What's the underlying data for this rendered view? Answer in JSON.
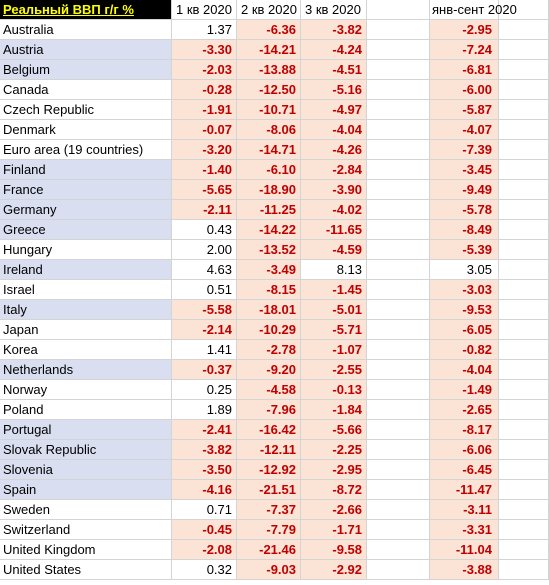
{
  "header": {
    "title": "Реальный ВВП г/г  %",
    "q1": "1 кв 2020",
    "q2": "2 кв 2020",
    "q3": "3 кв 2020",
    "ytd": "янв-сент 2020"
  },
  "colors": {
    "title_bg": "#000000",
    "title_text": "#ffff00",
    "highlight_row": "#d9def0",
    "negative_bg": "#fbe3d6",
    "negative_text": "#c00000"
  },
  "rows": [
    {
      "country": "Australia",
      "highlight": false,
      "q1": "1.37",
      "q2": "-6.36",
      "q3": "-3.82",
      "ytd": "-2.95"
    },
    {
      "country": "Austria",
      "highlight": true,
      "q1": "-3.30",
      "q2": "-14.21",
      "q3": "-4.24",
      "ytd": "-7.24"
    },
    {
      "country": "Belgium",
      "highlight": true,
      "q1": "-2.03",
      "q2": "-13.88",
      "q3": "-4.51",
      "ytd": "-6.81"
    },
    {
      "country": "Canada",
      "highlight": false,
      "q1": "-0.28",
      "q2": "-12.50",
      "q3": "-5.16",
      "ytd": "-6.00"
    },
    {
      "country": "Czech Republic",
      "highlight": false,
      "q1": "-1.91",
      "q2": "-10.71",
      "q3": "-4.97",
      "ytd": "-5.87"
    },
    {
      "country": "Denmark",
      "highlight": false,
      "q1": "-0.07",
      "q2": "-8.06",
      "q3": "-4.04",
      "ytd": "-4.07"
    },
    {
      "country": "Euro area (19 countries)",
      "highlight": false,
      "q1": "-3.20",
      "q2": "-14.71",
      "q3": "-4.26",
      "ytd": "-7.39"
    },
    {
      "country": "Finland",
      "highlight": true,
      "q1": "-1.40",
      "q2": "-6.10",
      "q3": "-2.84",
      "ytd": "-3.45"
    },
    {
      "country": "France",
      "highlight": true,
      "q1": "-5.65",
      "q2": "-18.90",
      "q3": "-3.90",
      "ytd": "-9.49"
    },
    {
      "country": "Germany",
      "highlight": true,
      "q1": "-2.11",
      "q2": "-11.25",
      "q3": "-4.02",
      "ytd": "-5.78"
    },
    {
      "country": "Greece",
      "highlight": true,
      "q1": "0.43",
      "q2": "-14.22",
      "q3": "-11.65",
      "ytd": "-8.49"
    },
    {
      "country": "Hungary",
      "highlight": false,
      "q1": "2.00",
      "q2": "-13.52",
      "q3": "-4.59",
      "ytd": "-5.39"
    },
    {
      "country": "Ireland",
      "highlight": true,
      "q1": "4.63",
      "q2": "-3.49",
      "q3": "8.13",
      "ytd": "3.05"
    },
    {
      "country": "Israel",
      "highlight": false,
      "q1": "0.51",
      "q2": "-8.15",
      "q3": "-1.45",
      "ytd": "-3.03"
    },
    {
      "country": "Italy",
      "highlight": true,
      "q1": "-5.58",
      "q2": "-18.01",
      "q3": "-5.01",
      "ytd": "-9.53"
    },
    {
      "country": "Japan",
      "highlight": false,
      "q1": "-2.14",
      "q2": "-10.29",
      "q3": "-5.71",
      "ytd": "-6.05"
    },
    {
      "country": "Korea",
      "highlight": false,
      "q1": "1.41",
      "q2": "-2.78",
      "q3": "-1.07",
      "ytd": "-0.82"
    },
    {
      "country": "Netherlands",
      "highlight": true,
      "q1": "-0.37",
      "q2": "-9.20",
      "q3": "-2.55",
      "ytd": "-4.04"
    },
    {
      "country": "Norway",
      "highlight": false,
      "q1": "0.25",
      "q2": "-4.58",
      "q3": "-0.13",
      "ytd": "-1.49"
    },
    {
      "country": "Poland",
      "highlight": false,
      "q1": "1.89",
      "q2": "-7.96",
      "q3": "-1.84",
      "ytd": "-2.65"
    },
    {
      "country": "Portugal",
      "highlight": true,
      "q1": "-2.41",
      "q2": "-16.42",
      "q3": "-5.66",
      "ytd": "-8.17"
    },
    {
      "country": "Slovak Republic",
      "highlight": true,
      "q1": "-3.82",
      "q2": "-12.11",
      "q3": "-2.25",
      "ytd": "-6.06"
    },
    {
      "country": "Slovenia",
      "highlight": true,
      "q1": "-3.50",
      "q2": "-12.92",
      "q3": "-2.95",
      "ytd": "-6.45"
    },
    {
      "country": "Spain",
      "highlight": true,
      "q1": "-4.16",
      "q2": "-21.51",
      "q3": "-8.72",
      "ytd": "-11.47"
    },
    {
      "country": "Sweden",
      "highlight": false,
      "q1": "0.71",
      "q2": "-7.37",
      "q3": "-2.66",
      "ytd": "-3.11"
    },
    {
      "country": "Switzerland",
      "highlight": false,
      "q1": "-0.45",
      "q2": "-7.79",
      "q3": "-1.71",
      "ytd": "-3.31"
    },
    {
      "country": "United Kingdom",
      "highlight": false,
      "q1": "-2.08",
      "q2": "-21.46",
      "q3": "-9.58",
      "ytd": "-11.04"
    },
    {
      "country": "United States",
      "highlight": false,
      "q1": "0.32",
      "q2": "-9.03",
      "q3": "-2.92",
      "ytd": "-3.88"
    }
  ]
}
